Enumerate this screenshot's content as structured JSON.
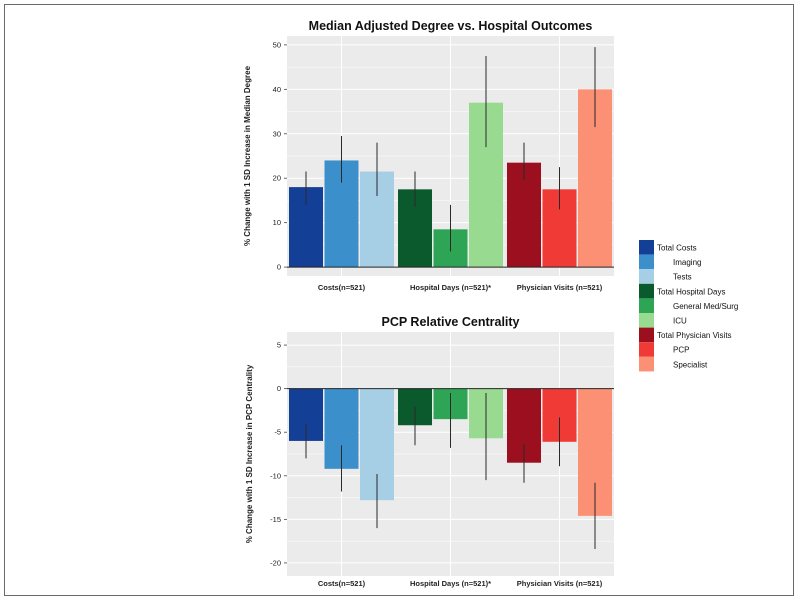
{
  "chart_data": [
    {
      "type": "bar",
      "title": "Median Adjusted Degree vs. Hospital Outcomes",
      "ylabel": "% Change with 1 SD Increase in Median Degree",
      "xlabel": "",
      "ylim": [
        -2,
        52
      ],
      "yticks": [
        "0",
        "10",
        "20",
        "30",
        "40",
        "50"
      ],
      "grid": true,
      "groups": [
        {
          "label": "Costs(n=521)",
          "bars": [
            {
              "series": "Total Costs",
              "value": 18,
              "err_low": 14,
              "err_high": 21.5
            },
            {
              "series": "Imaging",
              "value": 24,
              "err_low": 19,
              "err_high": 29.5
            },
            {
              "series": "Tests",
              "value": 21.5,
              "err_low": 16,
              "err_high": 28
            }
          ]
        },
        {
          "label": "Hospital Days (n=521)*",
          "bars": [
            {
              "series": "Total Hospital Days",
              "value": 17.5,
              "err_low": 13.5,
              "err_high": 21.5
            },
            {
              "series": "General Med/Surg",
              "value": 8.5,
              "err_low": 3.5,
              "err_high": 14
            },
            {
              "series": "ICU",
              "value": 37,
              "err_low": 27,
              "err_high": 47.5
            }
          ]
        },
        {
          "label": "Physician Visits (n=521)",
          "bars": [
            {
              "series": "Total Physician Visits",
              "value": 23.5,
              "err_low": 19.5,
              "err_high": 28
            },
            {
              "series": "PCP",
              "value": 17.5,
              "err_low": 13,
              "err_high": 22.5
            },
            {
              "series": "Specialist",
              "value": 40,
              "err_low": 31.5,
              "err_high": 49.5
            }
          ]
        }
      ]
    },
    {
      "type": "bar",
      "title": "PCP Relative Centrality",
      "ylabel": "% Change with 1 SD Increase in PCP Centrality",
      "xlabel": "",
      "ylim": [
        -21.5,
        6.5
      ],
      "yticks": [
        "5",
        "0",
        "-5",
        "-10",
        "-15",
        "-20"
      ],
      "grid": true,
      "groups": [
        {
          "label": "Costs(n=521)",
          "bars": [
            {
              "series": "Total Costs",
              "value": -6,
              "err_low": -8,
              "err_high": -4
            },
            {
              "series": "Imaging",
              "value": -9.2,
              "err_low": -11.8,
              "err_high": -6.5
            },
            {
              "series": "Tests",
              "value": -12.8,
              "err_low": -16,
              "err_high": -9.8
            }
          ]
        },
        {
          "label": "Hospital Days (n=521)*",
          "bars": [
            {
              "series": "Total Hospital Days",
              "value": -4.2,
              "err_low": -6.5,
              "err_high": -2
            },
            {
              "series": "General Med/Surg",
              "value": -3.5,
              "err_low": -6.8,
              "err_high": -0.5
            },
            {
              "series": "ICU",
              "value": -5.7,
              "err_low": -10.5,
              "err_high": -0.5
            }
          ]
        },
        {
          "label": "Physician Visits (n=521)",
          "bars": [
            {
              "series": "Total Physician Visits",
              "value": -8.5,
              "err_low": -10.8,
              "err_high": -6.3
            },
            {
              "series": "PCP",
              "value": -6.1,
              "err_low": -8.9,
              "err_high": -3.3
            },
            {
              "series": "Specialist",
              "value": -14.6,
              "err_low": -18.4,
              "err_high": -10.8
            }
          ]
        }
      ]
    }
  ],
  "legend": {
    "placement": "right",
    "items": [
      {
        "label": "Total Costs",
        "color": "#143f96",
        "indent": false
      },
      {
        "label": "Imaging",
        "color": "#3b8fcb",
        "indent": true
      },
      {
        "label": "Tests",
        "color": "#a6cfe6",
        "indent": true
      },
      {
        "label": "Total Hospital Days",
        "color": "#0b5a2d",
        "indent": false
      },
      {
        "label": "General Med/Surg",
        "color": "#2ea555",
        "indent": true
      },
      {
        "label": "ICU",
        "color": "#98db90",
        "indent": true
      },
      {
        "label": "Total Physician Visits",
        "color": "#9b0f1f",
        "indent": false
      },
      {
        "label": "PCP",
        "color": "#f03a35",
        "indent": true
      },
      {
        "label": "Specialist",
        "color": "#fb9075",
        "indent": true
      }
    ]
  },
  "colors": {
    "panel_bg": "#ebebeb",
    "grid": "#ffffff",
    "error_bar": "#2a2a2a",
    "zero_line": "#222222"
  }
}
